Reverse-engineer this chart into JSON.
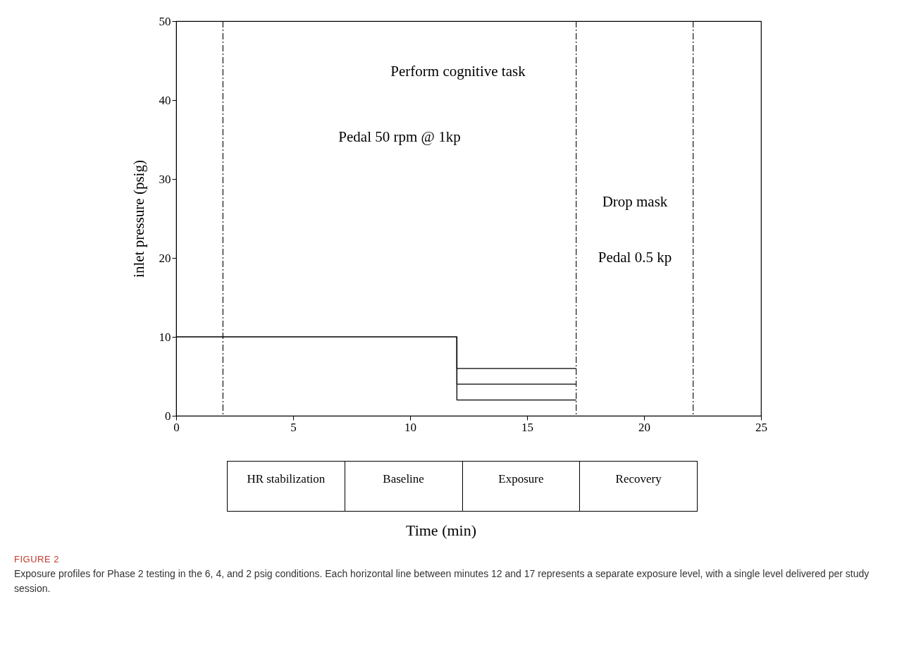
{
  "chart_data": [
    {
      "type": "line",
      "ylabel": "inlet pressure (psig)",
      "xlim": [
        0,
        25
      ],
      "xticks": [
        0,
        5,
        10,
        15,
        20,
        25
      ],
      "ylim": [
        0,
        50
      ],
      "yticks": [
        0,
        10,
        20,
        30,
        40,
        50
      ],
      "line_style": "solid",
      "marker": "none",
      "series": [
        {
          "color": "#000000",
          "x": [
            0,
            12,
            12,
            17.1
          ],
          "values": [
            10,
            10,
            6,
            6
          ]
        },
        {
          "color": "#000000",
          "x": [
            12,
            12,
            17.1
          ],
          "values": [
            10,
            4,
            4
          ]
        },
        {
          "color": "#000000",
          "x": [
            12,
            12,
            17.1
          ],
          "values": [
            10,
            2,
            2
          ]
        }
      ],
      "ref_lines": [
        {
          "axis": "x",
          "value": 2,
          "color": "#000000",
          "line_style": "dashed"
        },
        {
          "axis": "x",
          "value": 17.1,
          "color": "#000000",
          "line_style": "dashed"
        },
        {
          "axis": "x",
          "value": 22.1,
          "color": "#000000",
          "line_style": "dashed"
        }
      ],
      "annotations": [
        "Perform cognitive task",
        "Pedal 50 rpm @ 1kp",
        "Drop mask",
        "Pedal 0.5 kp",
        "FIGURE 2",
        "Exposure profiles for Phase 2 testing in the 6, 4, and 2 psig conditions. Each horizontal line between minutes 12 and 17 represents a separate exposure level, with a single level delivered per study session."
      ]
    },
    {
      "type": "other",
      "annotations": [
        "HR stabilization",
        "Baseline",
        "Exposure",
        "Recovery",
        "Time (min)"
      ]
    }
  ]
}
